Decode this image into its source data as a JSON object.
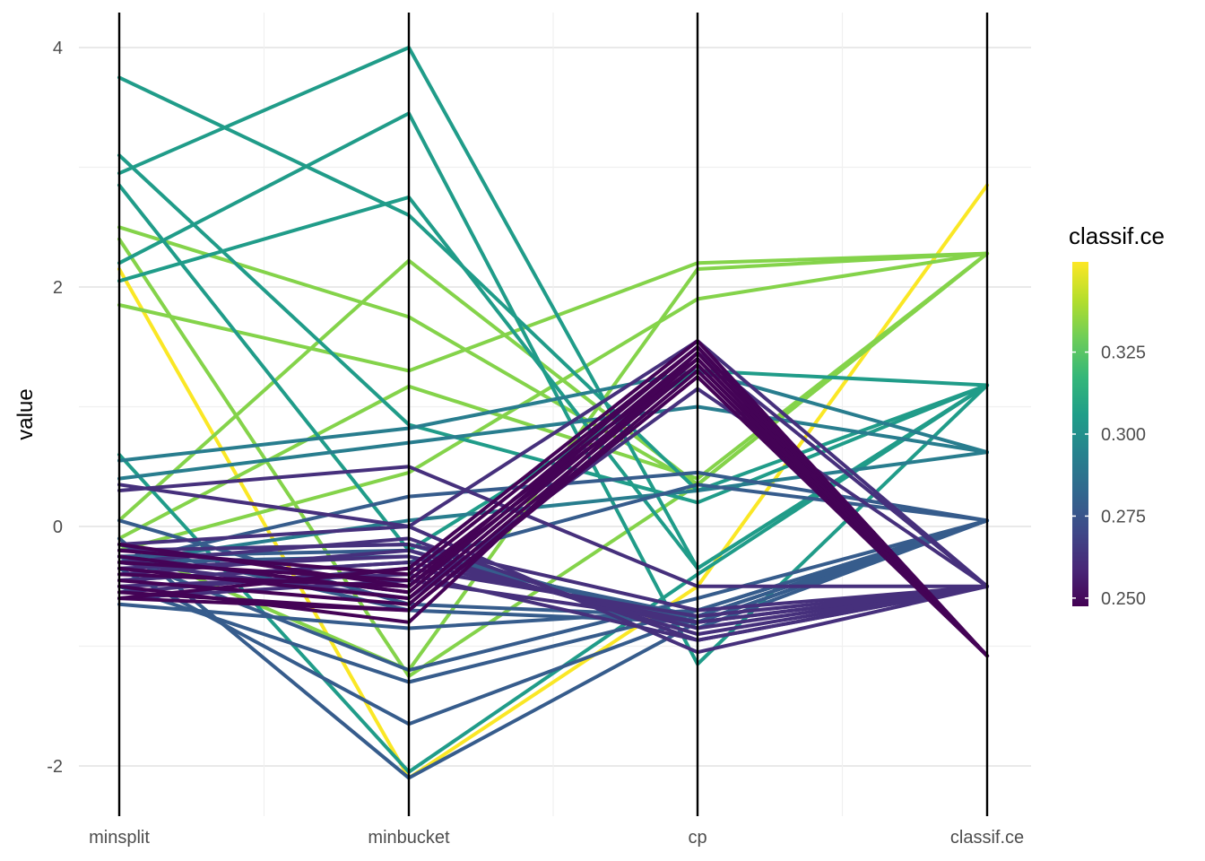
{
  "chart_data": {
    "type": "parallel-coordinates",
    "title": "",
    "xlabel": "",
    "ylabel": "value",
    "axes": [
      "minsplit",
      "minbucket",
      "cp",
      "classif.ce"
    ],
    "ylim": [
      -2.25,
      4.2
    ],
    "y_ticks": [
      -2,
      0,
      2,
      4
    ],
    "y_tick_labels": [
      "-2",
      "0",
      "2",
      "4"
    ],
    "grid": true,
    "legend": {
      "title": "classif.ce",
      "placement": "right",
      "range": [
        0.2475,
        0.3525
      ],
      "ticks": [
        0.25,
        0.275,
        0.3,
        0.325
      ],
      "tick_labels": [
        "0.250",
        "0.275",
        "0.300",
        "0.325"
      ],
      "palette": [
        "#440154",
        "#482878",
        "#3E4A89",
        "#31688E",
        "#26828E",
        "#1F9E89",
        "#35B779",
        "#6DCD59",
        "#B4DE2C",
        "#FDE725"
      ]
    },
    "series": [
      {
        "values": [
          2.15,
          -2.1,
          -0.5,
          2.85
        ],
        "classif_ce": 0.352
      },
      {
        "values": [
          2.5,
          1.75,
          0.35,
          2.28
        ],
        "classif_ce": 0.333
      },
      {
        "values": [
          1.85,
          1.3,
          2.2,
          2.28
        ],
        "classif_ce": 0.333
      },
      {
        "values": [
          0.05,
          2.22,
          0.35,
          2.28
        ],
        "classif_ce": 0.333
      },
      {
        "values": [
          -0.1,
          1.17,
          0.4,
          2.28
        ],
        "classif_ce": 0.333
      },
      {
        "values": [
          -0.2,
          0.45,
          1.9,
          2.28
        ],
        "classif_ce": 0.333
      },
      {
        "values": [
          2.4,
          -1.25,
          0.35,
          2.28
        ],
        "classif_ce": 0.333
      },
      {
        "values": [
          -0.15,
          -1.2,
          2.15,
          2.28
        ],
        "classif_ce": 0.333
      },
      {
        "values": [
          3.75,
          2.6,
          0.3,
          1.18
        ],
        "classif_ce": 0.305
      },
      {
        "values": [
          2.95,
          4.0,
          -0.35,
          1.18
        ],
        "classif_ce": 0.305
      },
      {
        "values": [
          2.2,
          3.45,
          -1.15,
          1.18
        ],
        "classif_ce": 0.305
      },
      {
        "values": [
          2.05,
          2.75,
          -0.35,
          1.18
        ],
        "classif_ce": 0.305
      },
      {
        "values": [
          2.85,
          -0.2,
          1.3,
          1.18
        ],
        "classif_ce": 0.305
      },
      {
        "values": [
          0.6,
          -2.05,
          -0.4,
          1.18
        ],
        "classif_ce": 0.305
      },
      {
        "values": [
          3.1,
          0.85,
          0.2,
          1.18
        ],
        "classif_ce": 0.305
      },
      {
        "values": [
          0.4,
          0.7,
          1.0,
          0.62
        ],
        "classif_ce": 0.292
      },
      {
        "values": [
          0.55,
          0.82,
          1.3,
          0.62
        ],
        "classif_ce": 0.292
      },
      {
        "values": [
          -0.3,
          0.05,
          0.3,
          0.62
        ],
        "classif_ce": 0.292
      },
      {
        "values": [
          -0.1,
          -2.1,
          -0.8,
          0.05
        ],
        "classif_ce": 0.278
      },
      {
        "values": [
          -0.35,
          -1.65,
          -0.75,
          0.05
        ],
        "classif_ce": 0.278
      },
      {
        "values": [
          -0.5,
          -1.3,
          -0.7,
          0.05
        ],
        "classif_ce": 0.278
      },
      {
        "values": [
          -0.25,
          -1.2,
          -0.6,
          0.05
        ],
        "classif_ce": 0.278
      },
      {
        "values": [
          -0.15,
          -0.7,
          -0.8,
          0.05
        ],
        "classif_ce": 0.278
      },
      {
        "values": [
          0.05,
          -0.65,
          -0.75,
          0.05
        ],
        "classif_ce": 0.278
      },
      {
        "values": [
          -0.65,
          -0.85,
          -0.7,
          0.05
        ],
        "classif_ce": 0.278
      },
      {
        "values": [
          -0.3,
          0.25,
          0.45,
          0.05
        ],
        "classif_ce": 0.278
      },
      {
        "values": [
          -0.2,
          -0.15,
          -0.85,
          0.05
        ],
        "classif_ce": 0.278
      },
      {
        "values": [
          -0.25,
          -0.2,
          -0.8,
          0.05
        ],
        "classif_ce": 0.278
      },
      {
        "values": [
          -0.3,
          -0.25,
          -0.75,
          0.05
        ],
        "classif_ce": 0.278
      },
      {
        "values": [
          -0.45,
          -0.3,
          0.35,
          0.05
        ],
        "classif_ce": 0.278
      },
      {
        "values": [
          0.3,
          0.5,
          -0.5,
          -0.5
        ],
        "classif_ce": 0.262
      },
      {
        "values": [
          -0.15,
          0.0,
          1.55,
          -0.5
        ],
        "classif_ce": 0.262
      },
      {
        "values": [
          -0.3,
          -0.1,
          -0.95,
          -0.5
        ],
        "classif_ce": 0.262
      },
      {
        "values": [
          -0.4,
          -0.2,
          -0.9,
          -0.5
        ],
        "classif_ce": 0.262
      },
      {
        "values": [
          -0.35,
          -0.25,
          -0.85,
          -0.5
        ],
        "classif_ce": 0.262
      },
      {
        "values": [
          -0.45,
          -0.3,
          -0.8,
          -0.5
        ],
        "classif_ce": 0.262
      },
      {
        "values": [
          -0.55,
          -0.35,
          -0.75,
          -0.5
        ],
        "classif_ce": 0.262
      },
      {
        "values": [
          -0.2,
          -0.15,
          -0.7,
          -0.5
        ],
        "classif_ce": 0.262
      },
      {
        "values": [
          -0.6,
          -0.45,
          -0.8,
          -0.5
        ],
        "classif_ce": 0.262
      },
      {
        "values": [
          -0.5,
          -0.4,
          -0.95,
          -0.5
        ],
        "classif_ce": 0.262
      },
      {
        "values": [
          0.35,
          0.0,
          -1.05,
          -0.5
        ],
        "classif_ce": 0.262
      },
      {
        "values": [
          -0.25,
          -0.55,
          1.45,
          -0.5
        ],
        "classif_ce": 0.262
      },
      {
        "values": [
          -0.3,
          -0.6,
          1.15,
          -0.5
        ],
        "classif_ce": 0.262
      },
      {
        "values": [
          -0.15,
          -0.5,
          1.5,
          -1.08
        ],
        "classif_ce": 0.248
      },
      {
        "values": [
          -0.25,
          -0.55,
          1.45,
          -1.08
        ],
        "classif_ce": 0.248
      },
      {
        "values": [
          -0.35,
          -0.6,
          1.4,
          -1.08
        ],
        "classif_ce": 0.248
      },
      {
        "values": [
          -0.45,
          -0.65,
          1.35,
          -1.08
        ],
        "classif_ce": 0.248
      },
      {
        "values": [
          -0.5,
          -0.8,
          1.45,
          -1.08
        ],
        "classif_ce": 0.248
      },
      {
        "values": [
          -0.55,
          -0.7,
          1.3,
          -1.08
        ],
        "classif_ce": 0.248
      },
      {
        "values": [
          -0.3,
          -0.45,
          1.4,
          -1.08
        ],
        "classif_ce": 0.248
      },
      {
        "values": [
          -0.4,
          -0.5,
          1.35,
          -1.08
        ],
        "classif_ce": 0.248
      },
      {
        "values": [
          -0.6,
          -0.7,
          1.25,
          -1.08
        ],
        "classif_ce": 0.248
      },
      {
        "values": [
          -0.2,
          -0.4,
          1.5,
          -1.08
        ],
        "classif_ce": 0.248
      },
      {
        "values": [
          -0.6,
          -0.35,
          1.55,
          -1.08
        ],
        "classif_ce": 0.248
      }
    ]
  }
}
